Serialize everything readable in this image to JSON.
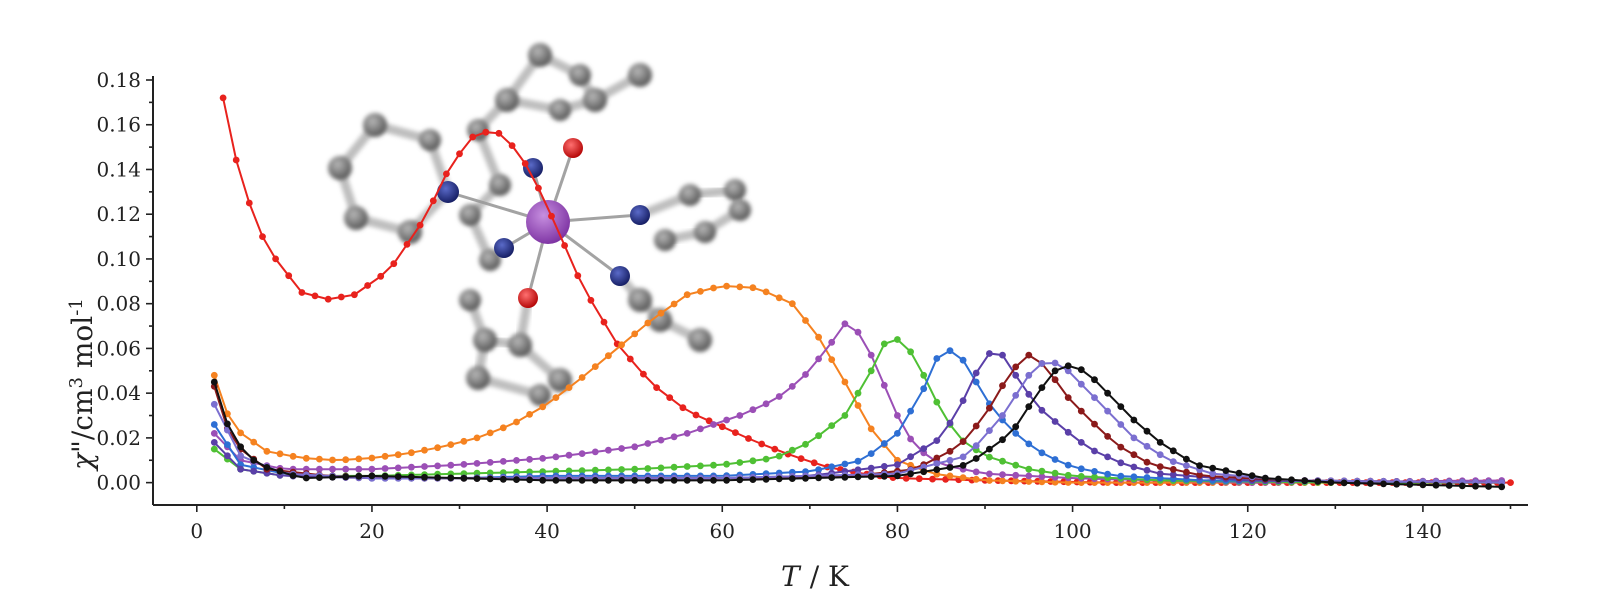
{
  "chart_data": {
    "type": "line",
    "title": "",
    "xlabel_symbol": "T",
    "xlabel_unit": "/ K",
    "ylabel_symbol": "χ",
    "ylabel_rest": "\"/cm",
    "ylabel_sup1": "3",
    "ylabel_mol": " mol",
    "ylabel_sup2": "-1",
    "xlim": [
      -5,
      152
    ],
    "ylim": [
      -0.01,
      0.18
    ],
    "x_ticks": [
      "0",
      "20",
      "40",
      "60",
      "80",
      "100",
      "120",
      "140"
    ],
    "x_tick_values": [
      0,
      20,
      40,
      60,
      80,
      100,
      120,
      140
    ],
    "y_ticks": [
      "0.00",
      "0.02",
      "0.04",
      "0.06",
      "0.08",
      "0.10",
      "0.12",
      "0.14",
      "0.16",
      "0.18"
    ],
    "y_tick_values": [
      0,
      0.02,
      0.04,
      0.06,
      0.08,
      0.1,
      0.12,
      0.14,
      0.16,
      0.18
    ],
    "grid": false,
    "inset": "molecular structure",
    "series": [
      {
        "color": "#e8221d",
        "points": [
          [
            3,
            0.172
          ],
          [
            5,
            0.135
          ],
          [
            8,
            0.105
          ],
          [
            12,
            0.085
          ],
          [
            15,
            0.082
          ],
          [
            18,
            0.084
          ],
          [
            22,
            0.095
          ],
          [
            26,
            0.118
          ],
          [
            29,
            0.142
          ],
          [
            32,
            0.157
          ],
          [
            35,
            0.156
          ],
          [
            38,
            0.14
          ],
          [
            41,
            0.115
          ],
          [
            44,
            0.088
          ],
          [
            48,
            0.062
          ],
          [
            52,
            0.044
          ],
          [
            56,
            0.032
          ],
          [
            60,
            0.025
          ],
          [
            64,
            0.018
          ],
          [
            68,
            0.012
          ],
          [
            72,
            0.007
          ],
          [
            76,
            0.004
          ],
          [
            80,
            0.002
          ],
          [
            90,
            0.001
          ],
          [
            105,
            0.0
          ],
          [
            120,
            0.0
          ],
          [
            150,
            0.0
          ]
        ]
      },
      {
        "color": "#f58220",
        "points": [
          [
            2,
            0.048
          ],
          [
            4,
            0.025
          ],
          [
            8,
            0.014
          ],
          [
            12,
            0.011
          ],
          [
            16,
            0.01
          ],
          [
            20,
            0.011
          ],
          [
            24,
            0.013
          ],
          [
            28,
            0.016
          ],
          [
            32,
            0.02
          ],
          [
            36,
            0.026
          ],
          [
            40,
            0.035
          ],
          [
            44,
            0.047
          ],
          [
            48,
            0.06
          ],
          [
            52,
            0.073
          ],
          [
            56,
            0.084
          ],
          [
            60,
            0.088
          ],
          [
            64,
            0.087
          ],
          [
            68,
            0.08
          ],
          [
            71,
            0.065
          ],
          [
            74,
            0.045
          ],
          [
            77,
            0.024
          ],
          [
            80,
            0.01
          ],
          [
            84,
            0.004
          ],
          [
            90,
            0.001
          ],
          [
            100,
            0.0
          ],
          [
            120,
            0.0
          ],
          [
            150,
            0.0
          ]
        ]
      },
      {
        "color": "#9b4fb6",
        "points": [
          [
            2,
            0.022
          ],
          [
            5,
            0.01
          ],
          [
            10,
            0.006
          ],
          [
            20,
            0.006
          ],
          [
            30,
            0.008
          ],
          [
            40,
            0.011
          ],
          [
            50,
            0.016
          ],
          [
            56,
            0.022
          ],
          [
            62,
            0.03
          ],
          [
            66,
            0.037
          ],
          [
            69,
            0.046
          ],
          [
            72,
            0.06
          ],
          [
            74,
            0.071
          ],
          [
            76,
            0.066
          ],
          [
            78,
            0.048
          ],
          [
            80,
            0.03
          ],
          [
            82,
            0.016
          ],
          [
            85,
            0.008
          ],
          [
            90,
            0.004
          ],
          [
            100,
            0.002
          ],
          [
            120,
            0.0
          ],
          [
            150,
            0.001
          ]
        ]
      },
      {
        "color": "#4fc034",
        "points": [
          [
            2,
            0.015
          ],
          [
            5,
            0.006
          ],
          [
            10,
            0.003
          ],
          [
            20,
            0.003
          ],
          [
            30,
            0.004
          ],
          [
            40,
            0.005
          ],
          [
            50,
            0.006
          ],
          [
            60,
            0.008
          ],
          [
            66,
            0.011
          ],
          [
            70,
            0.018
          ],
          [
            74,
            0.03
          ],
          [
            77,
            0.05
          ],
          [
            79,
            0.066
          ],
          [
            81,
            0.062
          ],
          [
            83,
            0.048
          ],
          [
            85,
            0.032
          ],
          [
            87,
            0.02
          ],
          [
            90,
            0.012
          ],
          [
            95,
            0.006
          ],
          [
            100,
            0.003
          ],
          [
            110,
            0.001
          ],
          [
            130,
            0.0
          ],
          [
            150,
            0.0
          ]
        ]
      },
      {
        "color": "#2e6fd4",
        "points": [
          [
            2,
            0.026
          ],
          [
            5,
            0.008
          ],
          [
            10,
            0.004
          ],
          [
            20,
            0.002
          ],
          [
            30,
            0.002
          ],
          [
            40,
            0.003
          ],
          [
            50,
            0.003
          ],
          [
            60,
            0.003
          ],
          [
            70,
            0.005
          ],
          [
            76,
            0.01
          ],
          [
            80,
            0.022
          ],
          [
            83,
            0.042
          ],
          [
            85,
            0.06
          ],
          [
            87,
            0.058
          ],
          [
            89,
            0.045
          ],
          [
            91,
            0.032
          ],
          [
            94,
            0.02
          ],
          [
            97,
            0.012
          ],
          [
            100,
            0.007
          ],
          [
            105,
            0.003
          ],
          [
            115,
            0.001
          ],
          [
            150,
            0.0
          ]
        ]
      },
      {
        "color": "#5a3fa8",
        "points": [
          [
            2,
            0.018
          ],
          [
            5,
            0.006
          ],
          [
            10,
            0.003
          ],
          [
            20,
            0.002
          ],
          [
            30,
            0.002
          ],
          [
            40,
            0.002
          ],
          [
            50,
            0.002
          ],
          [
            60,
            0.002
          ],
          [
            70,
            0.003
          ],
          [
            80,
            0.008
          ],
          [
            85,
            0.02
          ],
          [
            88,
            0.04
          ],
          [
            90,
            0.058
          ],
          [
            92,
            0.057
          ],
          [
            94,
            0.045
          ],
          [
            96,
            0.034
          ],
          [
            99,
            0.024
          ],
          [
            102,
            0.015
          ],
          [
            106,
            0.008
          ],
          [
            110,
            0.004
          ],
          [
            120,
            0.001
          ],
          [
            150,
            0.0
          ]
        ]
      },
      {
        "color": "#8b1a1a",
        "points": [
          [
            2,
            0.043
          ],
          [
            4,
            0.018
          ],
          [
            8,
            0.006
          ],
          [
            15,
            0.003
          ],
          [
            25,
            0.002
          ],
          [
            40,
            0.002
          ],
          [
            60,
            0.002
          ],
          [
            75,
            0.003
          ],
          [
            82,
            0.006
          ],
          [
            87,
            0.016
          ],
          [
            90,
            0.03
          ],
          [
            93,
            0.05
          ],
          [
            95,
            0.057
          ],
          [
            97,
            0.052
          ],
          [
            99,
            0.04
          ],
          [
            102,
            0.028
          ],
          [
            105,
            0.017
          ],
          [
            109,
            0.008
          ],
          [
            115,
            0.003
          ],
          [
            125,
            0.001
          ],
          [
            150,
            0.0
          ]
        ]
      },
      {
        "color": "#7b6fd0",
        "points": [
          [
            2,
            0.035
          ],
          [
            5,
            0.012
          ],
          [
            10,
            0.004
          ],
          [
            20,
            0.002
          ],
          [
            40,
            0.002
          ],
          [
            60,
            0.002
          ],
          [
            80,
            0.004
          ],
          [
            88,
            0.012
          ],
          [
            92,
            0.03
          ],
          [
            95,
            0.048
          ],
          [
            97,
            0.055
          ],
          [
            99,
            0.052
          ],
          [
            101,
            0.044
          ],
          [
            104,
            0.032
          ],
          [
            107,
            0.02
          ],
          [
            111,
            0.01
          ],
          [
            116,
            0.004
          ],
          [
            125,
            0.001
          ],
          [
            150,
            0.0
          ]
        ]
      },
      {
        "color": "#111111",
        "points": [
          [
            2,
            0.045
          ],
          [
            4,
            0.02
          ],
          [
            7,
            0.008
          ],
          [
            12,
            0.002
          ],
          [
            20,
            0.003
          ],
          [
            30,
            0.002
          ],
          [
            40,
            0.001
          ],
          [
            50,
            0.001
          ],
          [
            60,
            0.001
          ],
          [
            70,
            0.002
          ],
          [
            80,
            0.003
          ],
          [
            88,
            0.008
          ],
          [
            93,
            0.022
          ],
          [
            96,
            0.04
          ],
          [
            98,
            0.05
          ],
          [
            100,
            0.053
          ],
          [
            102,
            0.048
          ],
          [
            104,
            0.04
          ],
          [
            107,
            0.028
          ],
          [
            110,
            0.018
          ],
          [
            114,
            0.008
          ],
          [
            118,
            0.005
          ],
          [
            122,
            0.002
          ],
          [
            130,
            0.0
          ],
          [
            140,
            -0.001
          ],
          [
            150,
            -0.002
          ]
        ]
      }
    ]
  }
}
